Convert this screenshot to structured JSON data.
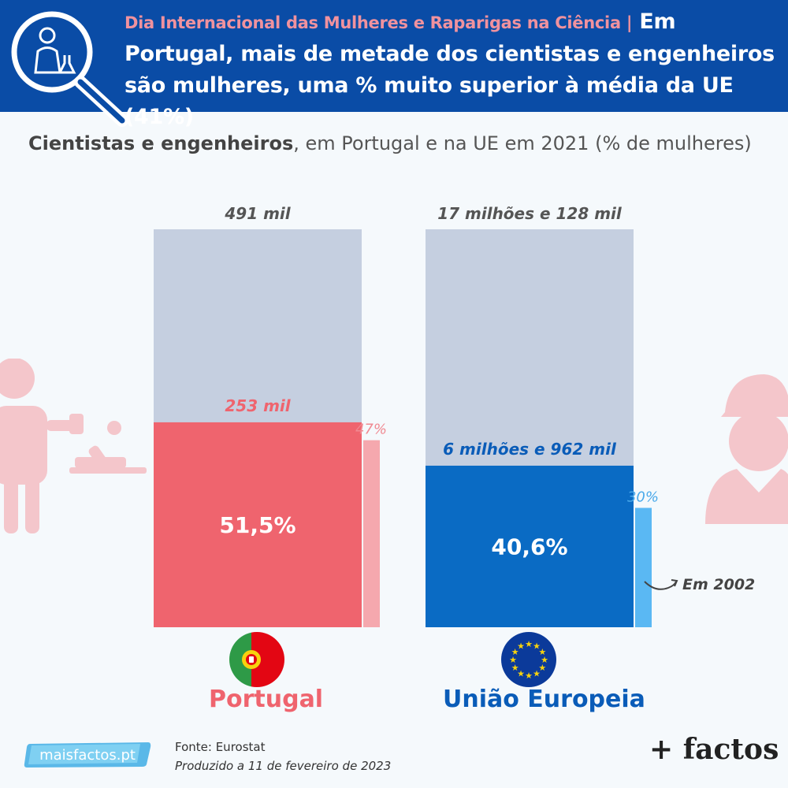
{
  "header": {
    "kicker": "Dia Internacional das Mulheres e Raparigas na Ciência |",
    "headline": "Em Portugal, mais de metade dos cientistas e engenheiros são mulheres, uma % muito superior à média da UE (41%)"
  },
  "subtitle": {
    "bold": "Cientistas e engenheiros",
    "rest": ", em Portugal e na UE em 2021 (% de mulheres)"
  },
  "chart_data": {
    "type": "bar",
    "categories": [
      "Portugal",
      "União Europeia"
    ],
    "series": [
      {
        "name": "2021",
        "values": [
          51.5,
          40.6
        ],
        "value_labels": [
          "51,5%",
          "40,6%"
        ],
        "totals": [
          "491 mil",
          "17 milhões e 128 mil"
        ],
        "women": [
          "253 mil",
          "6 milhões e 962 mil"
        ]
      },
      {
        "name": "Em 2002",
        "values": [
          47,
          30
        ],
        "value_labels": [
          "47%",
          "30%"
        ]
      }
    ],
    "ylim": [
      0,
      100
    ],
    "colors": {
      "total": "#c5cfe0",
      "portugal": "#ef646e",
      "portugal_2002": "#f5a8ae",
      "eu": "#0a6bc4",
      "eu_2002": "#5ab8f3"
    }
  },
  "countries": [
    "Portugal",
    "União Europeia"
  ],
  "annotation": "Em 2002",
  "source": {
    "line1": "Fonte: Eurostat",
    "line2": "Produzido a 11 de fevereiro de 2023"
  },
  "site": "maisfactos.pt",
  "brand": "+ factos"
}
